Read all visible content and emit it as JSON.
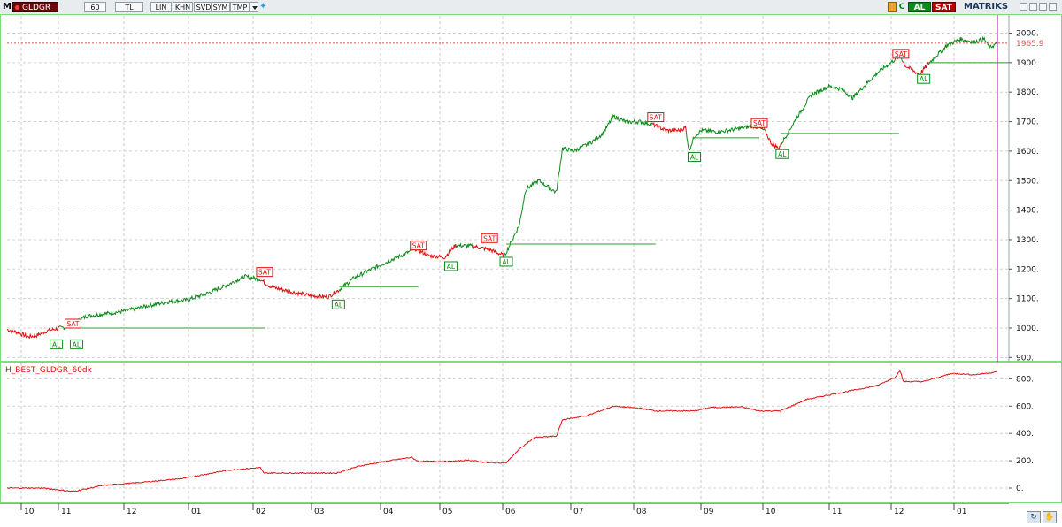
{
  "toolbar": {
    "app_logo": "M",
    "symbol": "GLDGR",
    "period": "60",
    "currency": "TL",
    "buttons": [
      "LIN",
      "KHN",
      "SVD",
      "SYM",
      "TMP"
    ],
    "al_label": "AL",
    "sat_label": "SAT",
    "brand": "MATRIKS",
    "icons": [
      "twitter-bird-icon",
      "lock-icon",
      "refresh-icon",
      "settings-icon",
      "minimize-icon",
      "restore-icon",
      "close-icon"
    ]
  },
  "colors": {
    "up": "#0b8a1a",
    "down": "#e01010",
    "indicator": "#e01010",
    "panel_border": "#7ddc7d",
    "cursor": "#b000b0",
    "last_price": "#e05050",
    "signal_line": "#2e9c2e"
  },
  "chart_data": [
    {
      "type": "line",
      "name": "GLDGR",
      "ylim": [
        850,
        2010
      ],
      "yticks": [
        900,
        1000,
        1100,
        1200,
        1300,
        1400,
        1500,
        1600,
        1700,
        1800,
        1900,
        2000
      ],
      "last_price": 1965.9,
      "last_price_label": "1965.9",
      "x_axis_labels": [
        "10",
        "11",
        "12",
        "01",
        "02",
        "03",
        "04",
        "05",
        "06",
        "07",
        "08",
        "09",
        "10",
        "11",
        "12",
        "01"
      ],
      "price_path": [
        {
          "t": 0,
          "v": 995
        },
        {
          "t": 12,
          "v": 985
        },
        {
          "t": 24,
          "v": 970
        },
        {
          "t": 34,
          "v": 975
        },
        {
          "t": 45,
          "v": 990
        },
        {
          "t": 60,
          "v": 1000
        },
        {
          "t": 70,
          "v": 1005
        },
        {
          "t": 90,
          "v": 1040
        },
        {
          "t": 110,
          "v": 1048
        },
        {
          "t": 135,
          "v": 1058
        },
        {
          "t": 160,
          "v": 1075
        },
        {
          "t": 185,
          "v": 1090
        },
        {
          "t": 205,
          "v": 1095
        },
        {
          "t": 230,
          "v": 1120
        },
        {
          "t": 250,
          "v": 1145
        },
        {
          "t": 270,
          "v": 1175
        },
        {
          "t": 288,
          "v": 1165
        },
        {
          "t": 300,
          "v": 1140
        },
        {
          "t": 320,
          "v": 1125
        },
        {
          "t": 345,
          "v": 1110
        },
        {
          "t": 365,
          "v": 1105
        },
        {
          "t": 378,
          "v": 1130
        },
        {
          "t": 395,
          "v": 1170
        },
        {
          "t": 415,
          "v": 1200
        },
        {
          "t": 440,
          "v": 1235
        },
        {
          "t": 465,
          "v": 1268
        },
        {
          "t": 480,
          "v": 1245
        },
        {
          "t": 498,
          "v": 1240
        },
        {
          "t": 510,
          "v": 1280
        },
        {
          "t": 530,
          "v": 1278
        },
        {
          "t": 550,
          "v": 1265
        },
        {
          "t": 566,
          "v": 1245
        },
        {
          "t": 575,
          "v": 1300
        },
        {
          "t": 583,
          "v": 1350
        },
        {
          "t": 590,
          "v": 1470
        },
        {
          "t": 605,
          "v": 1500
        },
        {
          "t": 615,
          "v": 1480
        },
        {
          "t": 625,
          "v": 1460
        },
        {
          "t": 632,
          "v": 1610
        },
        {
          "t": 645,
          "v": 1600
        },
        {
          "t": 665,
          "v": 1630
        },
        {
          "t": 678,
          "v": 1660
        },
        {
          "t": 690,
          "v": 1718
        },
        {
          "t": 705,
          "v": 1698
        },
        {
          "t": 720,
          "v": 1700
        },
        {
          "t": 735,
          "v": 1690
        },
        {
          "t": 750,
          "v": 1670
        },
        {
          "t": 765,
          "v": 1670
        },
        {
          "t": 772,
          "v": 1680
        },
        {
          "t": 776,
          "v": 1600
        },
        {
          "t": 782,
          "v": 1650
        },
        {
          "t": 790,
          "v": 1670
        },
        {
          "t": 810,
          "v": 1665
        },
        {
          "t": 830,
          "v": 1675
        },
        {
          "t": 850,
          "v": 1685
        },
        {
          "t": 862,
          "v": 1670
        },
        {
          "t": 870,
          "v": 1625
        },
        {
          "t": 878,
          "v": 1610
        },
        {
          "t": 888,
          "v": 1660
        },
        {
          "t": 900,
          "v": 1720
        },
        {
          "t": 915,
          "v": 1790
        },
        {
          "t": 935,
          "v": 1820
        },
        {
          "t": 950,
          "v": 1810
        },
        {
          "t": 962,
          "v": 1780
        },
        {
          "t": 975,
          "v": 1820
        },
        {
          "t": 992,
          "v": 1870
        },
        {
          "t": 1010,
          "v": 1910
        },
        {
          "t": 1016,
          "v": 1925
        },
        {
          "t": 1022,
          "v": 1890
        },
        {
          "t": 1030,
          "v": 1875
        },
        {
          "t": 1038,
          "v": 1860
        },
        {
          "t": 1048,
          "v": 1895
        },
        {
          "t": 1058,
          "v": 1925
        },
        {
          "t": 1070,
          "v": 1960
        },
        {
          "t": 1085,
          "v": 1980
        },
        {
          "t": 1100,
          "v": 1970
        },
        {
          "t": 1112,
          "v": 1980
        },
        {
          "t": 1118,
          "v": 1950
        },
        {
          "t": 1126,
          "v": 1965
        }
      ],
      "red_segments": [
        [
          0,
          60
        ],
        [
          288,
          378
        ],
        [
          465,
          510
        ],
        [
          530,
          566
        ],
        [
          735,
          772
        ],
        [
          862,
          880
        ],
        [
          1018,
          1048
        ]
      ],
      "signals": [
        {
          "label": "AL",
          "t": 56,
          "v": 960,
          "side": "below"
        },
        {
          "label": "SAT",
          "t": 75,
          "v": 1000,
          "side": "above"
        },
        {
          "label": "AL",
          "t": 79,
          "v": 960,
          "side": "below"
        },
        {
          "label": "SAT",
          "t": 293,
          "v": 1175,
          "side": "above"
        },
        {
          "label": "AL",
          "t": 377,
          "v": 1095,
          "side": "below"
        },
        {
          "label": "SAT",
          "t": 468,
          "v": 1265,
          "side": "above"
        },
        {
          "label": "AL",
          "t": 505,
          "v": 1225,
          "side": "below"
        },
        {
          "label": "SAT",
          "t": 549,
          "v": 1290,
          "side": "above"
        },
        {
          "label": "AL",
          "t": 568,
          "v": 1240,
          "side": "below"
        },
        {
          "label": "SAT",
          "t": 738,
          "v": 1700,
          "side": "above"
        },
        {
          "label": "AL",
          "t": 782,
          "v": 1595,
          "side": "below"
        },
        {
          "label": "SAT",
          "t": 856,
          "v": 1680,
          "side": "above"
        },
        {
          "label": "AL",
          "t": 882,
          "v": 1605,
          "side": "below"
        },
        {
          "label": "SAT",
          "t": 1017,
          "v": 1915,
          "side": "above"
        },
        {
          "label": "AL",
          "t": 1043,
          "v": 1860,
          "side": "below"
        }
      ],
      "signal_lines": [
        {
          "t1": 70,
          "t2": 293,
          "v": 1000
        },
        {
          "t1": 378,
          "t2": 468,
          "v": 1140
        },
        {
          "t1": 568,
          "t2": 738,
          "v": 1285
        },
        {
          "t1": 782,
          "t2": 856,
          "v": 1645
        },
        {
          "t1": 880,
          "t2": 1015,
          "v": 1660
        },
        {
          "t1": 1048,
          "t2": 1140,
          "v": 1900
        }
      ]
    },
    {
      "type": "line",
      "name": "H_BEST_GLDGR_60dk",
      "ylim": [
        -60,
        920
      ],
      "yticks": [
        0,
        200,
        400,
        600,
        800
      ],
      "values": [
        {
          "t": 0,
          "v": 0
        },
        {
          "t": 40,
          "v": 0
        },
        {
          "t": 55,
          "v": -10
        },
        {
          "t": 75,
          "v": -25
        },
        {
          "t": 110,
          "v": 20
        },
        {
          "t": 150,
          "v": 40
        },
        {
          "t": 200,
          "v": 70
        },
        {
          "t": 250,
          "v": 130
        },
        {
          "t": 288,
          "v": 150
        },
        {
          "t": 292,
          "v": 110
        },
        {
          "t": 375,
          "v": 110
        },
        {
          "t": 400,
          "v": 160
        },
        {
          "t": 430,
          "v": 195
        },
        {
          "t": 460,
          "v": 225
        },
        {
          "t": 468,
          "v": 195
        },
        {
          "t": 505,
          "v": 195
        },
        {
          "t": 525,
          "v": 205
        },
        {
          "t": 548,
          "v": 185
        },
        {
          "t": 568,
          "v": 185
        },
        {
          "t": 582,
          "v": 280
        },
        {
          "t": 600,
          "v": 370
        },
        {
          "t": 625,
          "v": 380
        },
        {
          "t": 632,
          "v": 500
        },
        {
          "t": 660,
          "v": 530
        },
        {
          "t": 690,
          "v": 600
        },
        {
          "t": 720,
          "v": 585
        },
        {
          "t": 738,
          "v": 565
        },
        {
          "t": 782,
          "v": 565
        },
        {
          "t": 800,
          "v": 590
        },
        {
          "t": 835,
          "v": 595
        },
        {
          "t": 856,
          "v": 565
        },
        {
          "t": 880,
          "v": 565
        },
        {
          "t": 910,
          "v": 650
        },
        {
          "t": 950,
          "v": 700
        },
        {
          "t": 990,
          "v": 750
        },
        {
          "t": 1010,
          "v": 810
        },
        {
          "t": 1016,
          "v": 860
        },
        {
          "t": 1020,
          "v": 780
        },
        {
          "t": 1043,
          "v": 780
        },
        {
          "t": 1075,
          "v": 840
        },
        {
          "t": 1100,
          "v": 830
        },
        {
          "t": 1126,
          "v": 850
        }
      ]
    }
  ]
}
